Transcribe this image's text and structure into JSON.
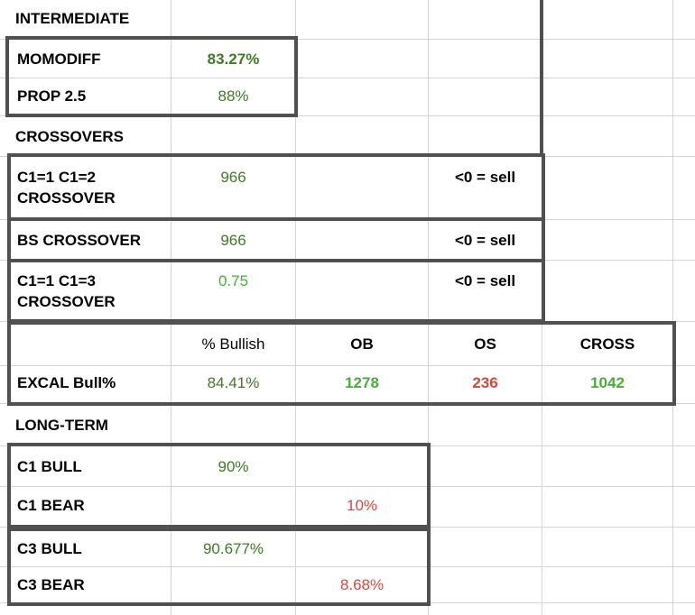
{
  "colors": {
    "grid_line": "#d4d4d4",
    "box_border": "#505050",
    "green_dark": "#3e7b22",
    "green_bright": "#4bab3b",
    "red": "#d8473c"
  },
  "sections": {
    "intermediate": "INTERMEDIATE",
    "crossovers": "CROSSOVERS",
    "long_term": "LONG-TERM"
  },
  "rows": {
    "momodiff": {
      "label": "MOMODIFF",
      "value": "83.27%"
    },
    "prop": {
      "label": "PROP 2.5",
      "value": "88%"
    },
    "c1c2": {
      "label_line1": "C1=1 C1=2",
      "label_line2": "CROSSOVER",
      "value": "966",
      "note": "<0 = sell"
    },
    "bs": {
      "label": "BS CROSSOVER",
      "value": "966",
      "note": "<0 = sell"
    },
    "c1c3": {
      "label_line1": "C1=1 C1=3",
      "label_line2": "CROSSOVER",
      "value": "0.75",
      "note": "<0 = sell"
    }
  },
  "excal": {
    "headers": {
      "bullish": "% Bullish",
      "ob": "OB",
      "os": "OS",
      "cross": "CROSS"
    },
    "label": "EXCAL Bull%",
    "bullish": "84.41%",
    "ob": "1278",
    "os": "236",
    "cross": "1042"
  },
  "long_term": {
    "c1_bull": {
      "label": "C1 BULL",
      "value": "90%"
    },
    "c1_bear": {
      "label": "C1 BEAR",
      "value": "10%"
    },
    "c3_bull": {
      "label": "C3 BULL",
      "value": "90.677%"
    },
    "c3_bear": {
      "label": "C3 BEAR",
      "value": "8.68%"
    }
  }
}
